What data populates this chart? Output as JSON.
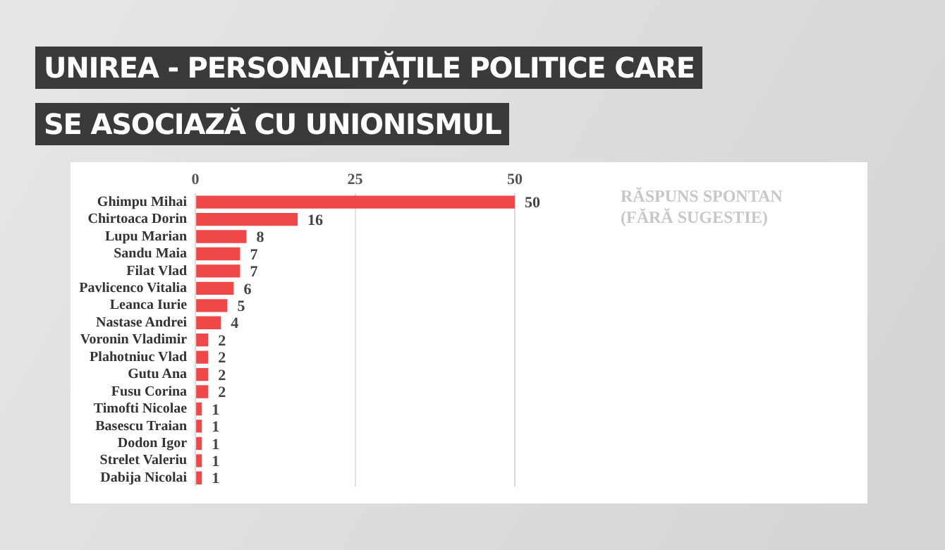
{
  "chart_data": {
    "type": "bar",
    "orientation": "horizontal",
    "title": "UNIREA - PERSONALITĂȚILE POLITICE CARE SE ASOCIAZĂ CU UNIONISMUL",
    "categories": [
      "Ghimpu Mihai",
      "Chirtoaca Dorin",
      "Lupu Marian",
      "Sandu Maia",
      "Filat Vlad",
      "Pavlicenco Vitalia",
      "Leanca Iurie",
      "Nastase Andrei",
      "Voronin Vladimir",
      "Plahotniuc Vlad",
      "Gutu Ana",
      "Fusu Corina",
      "Timofti Nicolae",
      "Basescu Traian",
      "Dodon Igor",
      "Strelet Valeriu",
      "Dabija Nicolai"
    ],
    "values": [
      50,
      16,
      8,
      7,
      7,
      6,
      5,
      4,
      2,
      2,
      2,
      2,
      1,
      1,
      1,
      1,
      1
    ],
    "color": "#f04848",
    "xlim": [
      0,
      50
    ],
    "xticks": [
      0,
      25,
      50
    ],
    "grid": "x",
    "data_labels": true,
    "annotations": [
      "RĂSPUNS SPONTAN (FĂRĂ SUGESTIE)"
    ]
  }
}
